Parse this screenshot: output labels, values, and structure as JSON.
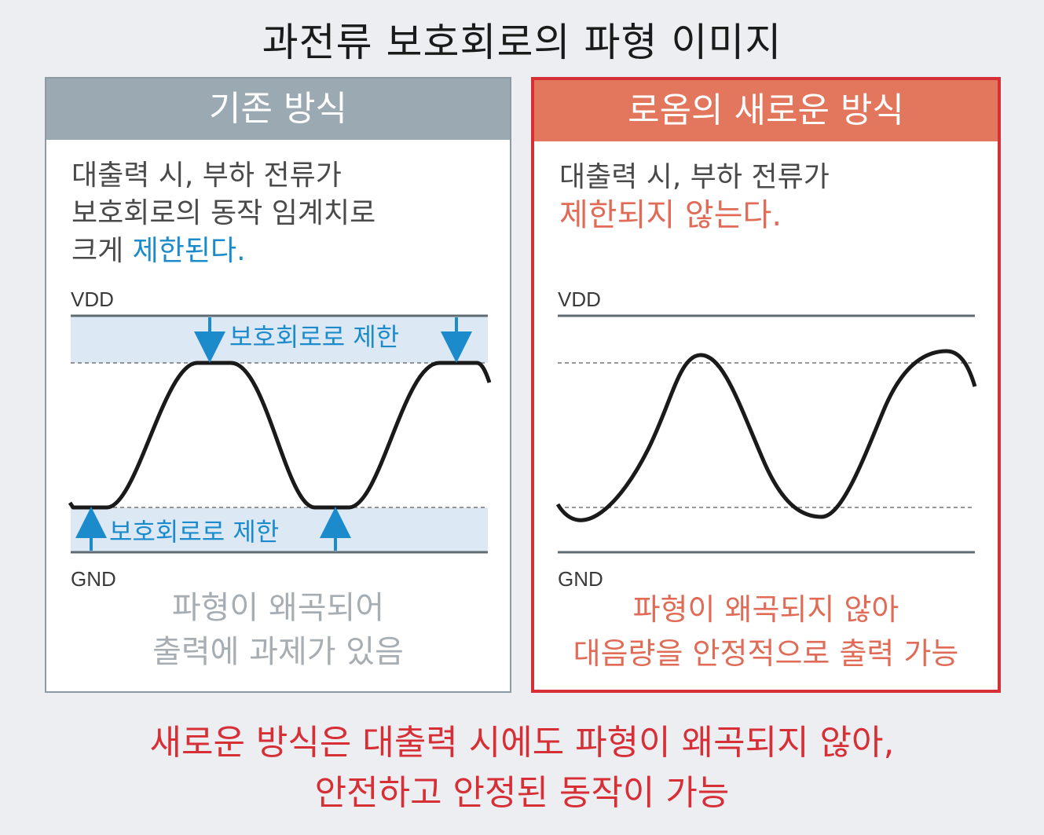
{
  "title": "과전류 보호회로의 파형 이미지",
  "left": {
    "header": "기존 방식",
    "desc_line1": "대출력 시, 부하 전류가",
    "desc_line2": "보호회로의 동작 임계치로",
    "desc_line3_prefix": "크게 ",
    "desc_line3_highlight": "제한된다.",
    "vdd_label": "VDD",
    "gnd_label": "GND",
    "limit_top": "보호회로로 제한",
    "limit_bottom": "보호회로로 제한",
    "conclusion_line1": "파형이 왜곡되어",
    "conclusion_line2": "출력에 과제가 있음"
  },
  "right": {
    "header": "로옴의 새로운 방식",
    "desc_line1": "대출력 시, 부하 전류가",
    "desc_line2_highlight": "제한되지 않는다.",
    "vdd_label": "VDD",
    "gnd_label": "GND",
    "conclusion_line1": "파형이 왜곡되지 않아",
    "conclusion_line2": "대음량을 안정적으로 출력 가능"
  },
  "footer_line1": "새로운 방식은 대출력 시에도 파형이 왜곡되지 않아,",
  "footer_line2": "안전하고 안정된 동작이 가능",
  "colors": {
    "accent_red": "#d72f36",
    "accent_orange": "#e3775e",
    "accent_blue": "#1b8bcb",
    "header_gray": "#9aa9b2"
  }
}
